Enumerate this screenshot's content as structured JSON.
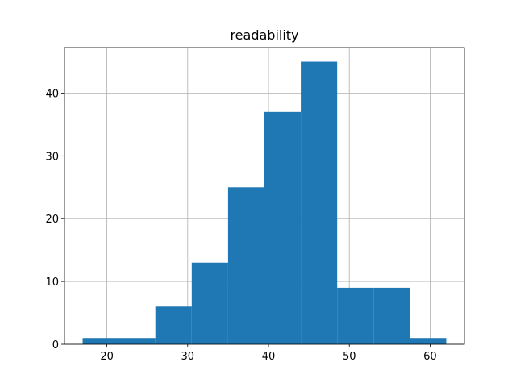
{
  "chart_data": {
    "type": "histogram",
    "title": "readability",
    "bins": [
      17,
      21.5,
      26,
      30.5,
      35,
      39.5,
      44,
      48.5,
      53,
      57.5,
      62
    ],
    "values": [
      1,
      1,
      6,
      13,
      25,
      37,
      45,
      9,
      9,
      1
    ],
    "color": "#1f77b4",
    "xlim": [
      14.75,
      64.25
    ],
    "xticks": [
      20,
      30,
      40,
      50,
      60
    ],
    "ylim": [
      0,
      47.25
    ],
    "yticks": [
      0,
      10,
      20,
      30,
      40
    ],
    "grid": true
  }
}
